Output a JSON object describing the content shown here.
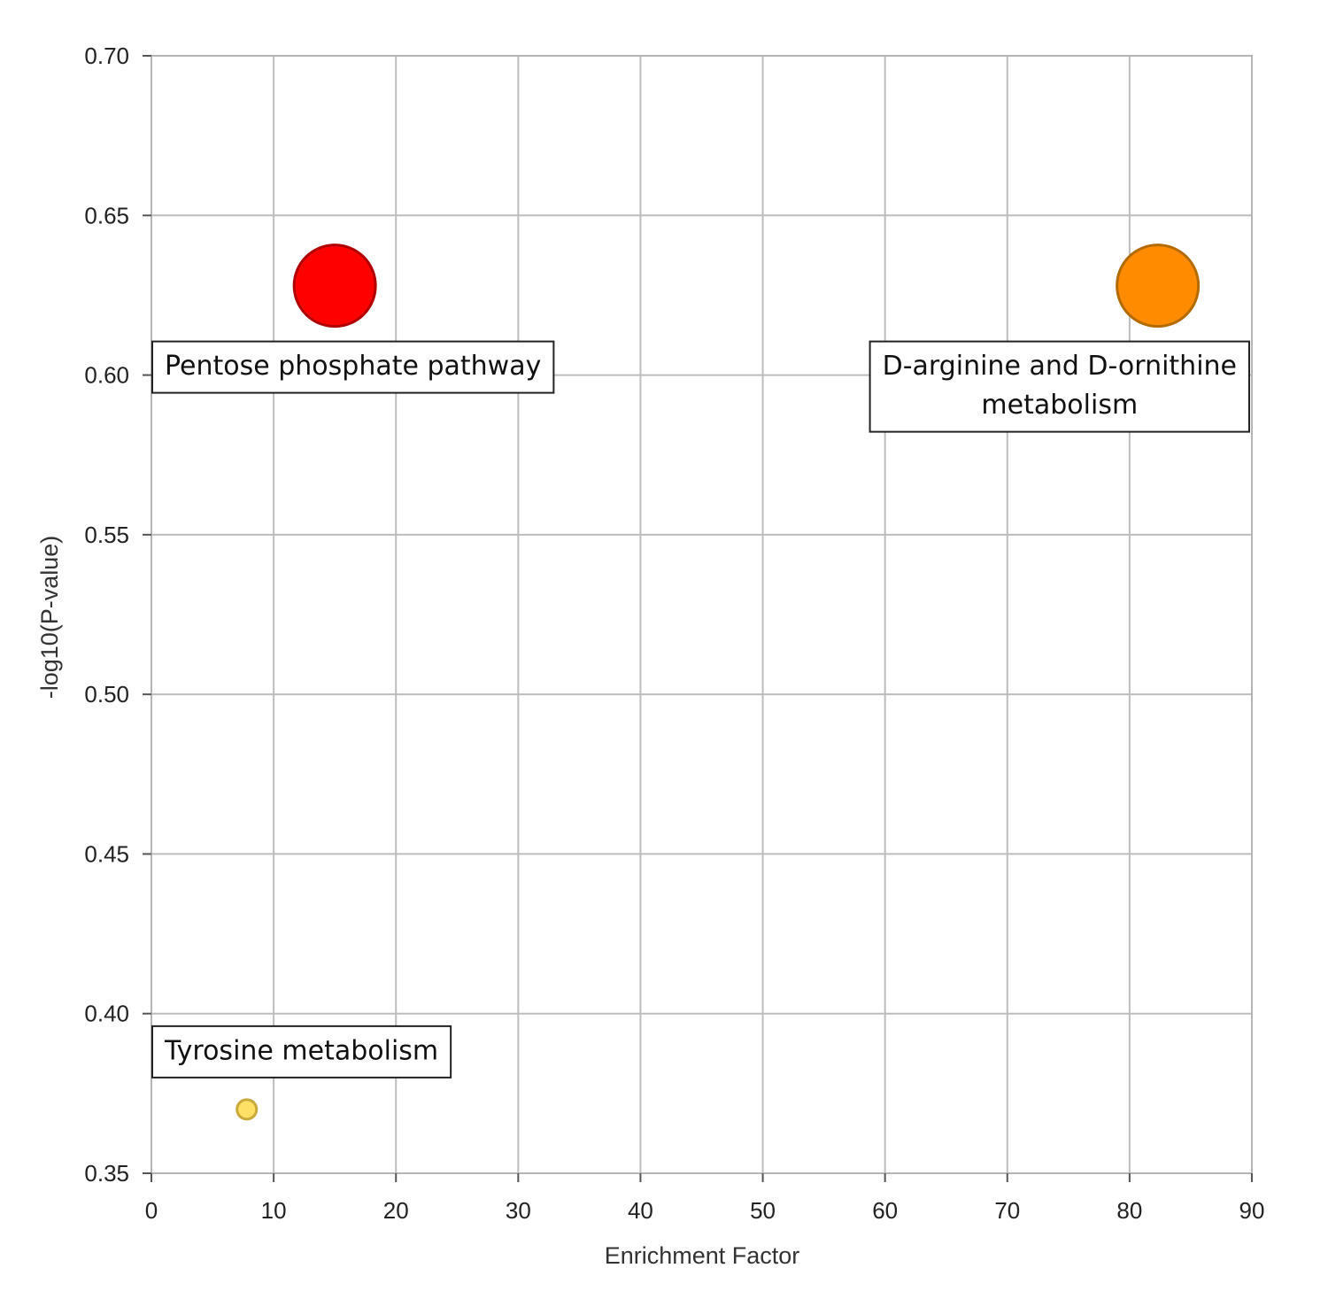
{
  "chart_data": {
    "type": "scatter",
    "xlabel": "Enrichment Factor",
    "ylabel": "-log10(P-value)",
    "xlim": [
      0,
      90
    ],
    "ylim": [
      0.35,
      0.7
    ],
    "x_ticks": [
      0,
      10,
      20,
      30,
      40,
      50,
      60,
      70,
      80,
      90
    ],
    "y_ticks": [
      "0.35",
      "0.40",
      "0.45",
      "0.50",
      "0.55",
      "0.60",
      "0.65",
      "0.70"
    ],
    "grid": true,
    "points": [
      {
        "name": "Pentose phosphate pathway",
        "label_lines": [
          "Pentose phosphate pathway"
        ],
        "x": 15,
        "y": 0.628,
        "size": "large",
        "color": "#ff0000",
        "edge_color": "#b00000"
      },
      {
        "name": "D-arginine and D-ornithine metabolism",
        "label_lines": [
          "D-arginine and D-ornithine",
          "metabolism"
        ],
        "x": 82.3,
        "y": 0.628,
        "size": "large",
        "color": "#ff8c00",
        "edge_color": "#b36b00"
      },
      {
        "name": "Tyrosine metabolism",
        "label_lines": [
          "Tyrosine metabolism"
        ],
        "x": 7.8,
        "y": 0.37,
        "size": "small",
        "color": "#ffe066",
        "edge_color": "#c9a93a"
      }
    ]
  }
}
